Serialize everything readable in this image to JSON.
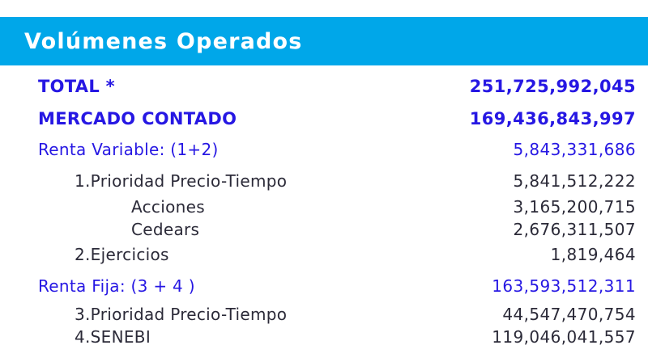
{
  "header": {
    "title": "Volúmenes Operados"
  },
  "colors": {
    "header_bg": "#00A7E9",
    "header_text": "#FFFFFF",
    "blue_text": "#2617E3",
    "dark_text": "#2B2A38",
    "page_bg": "#FFFFFF"
  },
  "rows": [
    {
      "label": "TOTAL *",
      "value": "251,725,992,045",
      "style": "total",
      "indent": 0
    },
    {
      "label": "MERCADO CONTADO",
      "value": "169,436,843,997",
      "style": "total",
      "indent": 0
    },
    {
      "label": "Renta Variable: (1+2)",
      "value": "5,843,331,686",
      "style": "group",
      "indent": 0
    },
    {
      "label": "1.Prioridad Precio-Tiempo",
      "value": "5,841,512,222",
      "style": "detail",
      "indent": 1
    },
    {
      "label": "Acciones",
      "value": "3,165,200,715",
      "style": "detail",
      "indent": 2
    },
    {
      "label": "Cedears",
      "value": "2,676,311,507",
      "style": "detail",
      "indent": 2
    },
    {
      "label": "2.Ejercicios",
      "value": "1,819,464",
      "style": "detail",
      "indent": 1
    },
    {
      "label": "Renta Fija: (3 + 4 )",
      "value": "163,593,512,311",
      "style": "group",
      "indent": 0
    },
    {
      "label": "3.Prioridad Precio-Tiempo",
      "value": "44,547,470,754",
      "style": "detail",
      "indent": 1
    },
    {
      "label": "4.SENEBI",
      "value": "119,046,041,557",
      "style": "detail",
      "indent": 1
    }
  ]
}
